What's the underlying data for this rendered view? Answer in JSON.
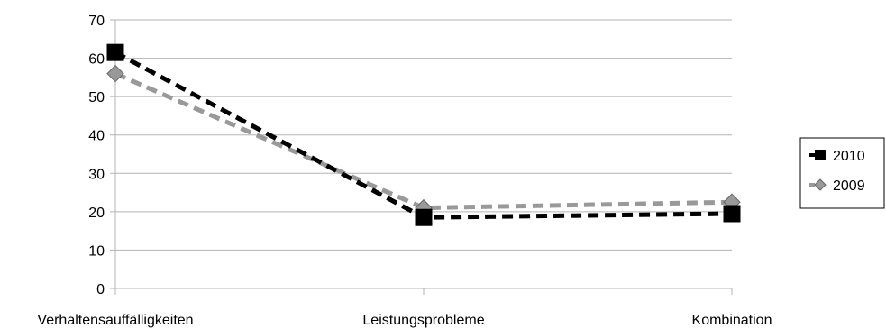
{
  "chart_data": {
    "type": "line",
    "categories": [
      "Verhaltensauffälligkeiten",
      "Leistungsprobleme",
      "Kombination"
    ],
    "series": [
      {
        "name": "2010",
        "values": [
          61.5,
          18.5,
          19.5
        ],
        "color": "#000000",
        "marker": "square",
        "line_style": "dashed"
      },
      {
        "name": "2009",
        "values": [
          56,
          21,
          22.5
        ],
        "color": "#999999",
        "marker": "diamond",
        "line_style": "dashed"
      }
    ],
    "ylim": [
      0,
      70
    ],
    "yticks": [
      0,
      10,
      20,
      30,
      40,
      50,
      60,
      70
    ],
    "grid": true,
    "legend_position": "right"
  }
}
